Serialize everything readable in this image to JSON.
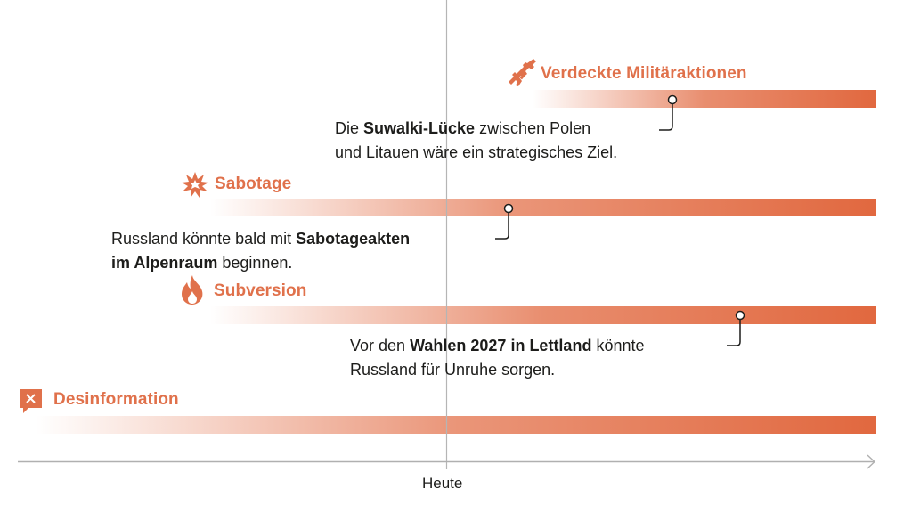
{
  "colors": {
    "accent": "#e0714b",
    "bar_end": "#e1683f",
    "text": "#1d1d1b",
    "axis": "#aaaaaa"
  },
  "axis": {
    "label": "Heute"
  },
  "categories": [
    {
      "id": "militaer",
      "label": "Verdeckte Militäraktionen",
      "icon": "rifle-icon"
    },
    {
      "id": "sabotage",
      "label": "Sabotage",
      "icon": "explosion-icon"
    },
    {
      "id": "subversion",
      "label": "Subversion",
      "icon": "fire-icon"
    },
    {
      "id": "desinformation",
      "label": "Desinformation",
      "icon": "fake-news-icon"
    }
  ],
  "notes": {
    "militaer": {
      "pre": "Die ",
      "bold": "Suwalki-Lücke",
      "post": " zwischen Polen",
      "line2": "und Litauen wäre ein strategisches Ziel."
    },
    "sabotage": {
      "pre": "Russland könnte bald mit ",
      "bold": "Sabotageakten",
      "line2_bold": "im Alpenraum",
      "line2_post": " beginnen."
    },
    "subversion": {
      "pre": "Vor den ",
      "bold": "Wahlen 2027 in Lettland",
      "post": " könnte",
      "line2": "Russland für Unruhe sorgen."
    }
  }
}
